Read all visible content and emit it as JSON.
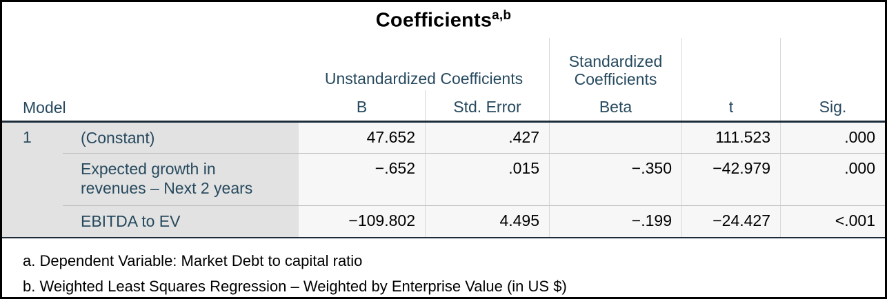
{
  "colors": {
    "header_text": "#26495E",
    "dark_rule": "#1D2C39",
    "label_background": "#E2E2E2",
    "cell_background": "#F7F7F8",
    "outer_border": "#000000"
  },
  "title": {
    "text": "Coefficients",
    "superscript": "a,b"
  },
  "table": {
    "model_header": "Model",
    "spanners": [
      {
        "label": "Unstandardized Coefficients",
        "columns": [
          "B",
          "Std. Error"
        ]
      },
      {
        "label": "Standardized Coefficients",
        "columns": [
          "Beta"
        ]
      }
    ],
    "column_headers": [
      "B",
      "Std. Error",
      "Beta",
      "t",
      "Sig."
    ],
    "rows": [
      {
        "model": "1",
        "label": "(Constant)",
        "b": "47.652",
        "std_error": ".427",
        "beta": "",
        "t": "111.523",
        "sig": ".000"
      },
      {
        "model": "",
        "label": "Expected growth in revenues – Next 2 years",
        "b": "−.652",
        "std_error": ".015",
        "beta": "−.350",
        "t": "−42.979",
        "sig": ".000"
      },
      {
        "model": "",
        "label": "EBITDA to EV",
        "b": "−109.802",
        "std_error": "4.495",
        "beta": "−.199",
        "t": "−24.427",
        "sig": "<.001"
      }
    ]
  },
  "footnotes": [
    "a. Dependent Variable: Market Debt to capital ratio",
    "b. Weighted Least Squares Regression – Weighted by Enterprise Value (in US $)"
  ]
}
